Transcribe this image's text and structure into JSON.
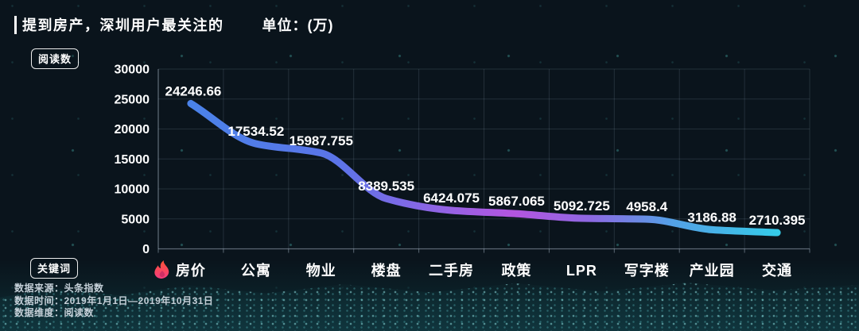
{
  "header": {
    "title": "提到房产，深圳用户最关注的",
    "unit_label": "单位：(万)"
  },
  "axis_badges": {
    "y": "阅读数",
    "x": "关键词"
  },
  "footer": {
    "source": "数据来源：头条指数",
    "time": "数据时间：2019年1月1日—2019年10月31日",
    "dimension": "数据维度：阅读数"
  },
  "chart_data": {
    "type": "line",
    "title": "提到房产，深圳用户最关注的",
    "unit": "万",
    "xlabel": "关键词",
    "ylabel": "阅读数",
    "categories": [
      "房价",
      "公寓",
      "物业",
      "楼盘",
      "二手房",
      "政策",
      "LPR",
      "写字楼",
      "产业园",
      "交通"
    ],
    "values": [
      24246.66,
      17534.52,
      15987.755,
      8389.535,
      6424.075,
      5867.065,
      5092.725,
      4958.4,
      3186.88,
      2710.395
    ],
    "ylim": [
      0,
      30000
    ],
    "yticks": [
      0,
      5000,
      10000,
      15000,
      20000,
      25000,
      30000
    ],
    "grid": true,
    "legend_position": "none",
    "first_category_icon": "flame-icon",
    "line_gradient_stops": [
      {
        "offset": 0.0,
        "color": "#4a82e8"
      },
      {
        "offset": 0.25,
        "color": "#5b74e8"
      },
      {
        "offset": 0.42,
        "color": "#8f64e4"
      },
      {
        "offset": 0.55,
        "color": "#b455e0"
      },
      {
        "offset": 0.68,
        "color": "#8e68e2"
      },
      {
        "offset": 0.82,
        "color": "#54a0e6"
      },
      {
        "offset": 1.0,
        "color": "#35cbe8"
      }
    ]
  },
  "colors": {
    "background": "#0a141c",
    "text": "#ffffff",
    "muted_text": "#c5d0d8",
    "grid": "rgba(170,190,210,0.16)",
    "axis": "rgba(205,220,235,0.42)",
    "flame_top": "#ff5436",
    "flame_bottom": "#f43d7f",
    "flame_inner": "#c22a62"
  }
}
